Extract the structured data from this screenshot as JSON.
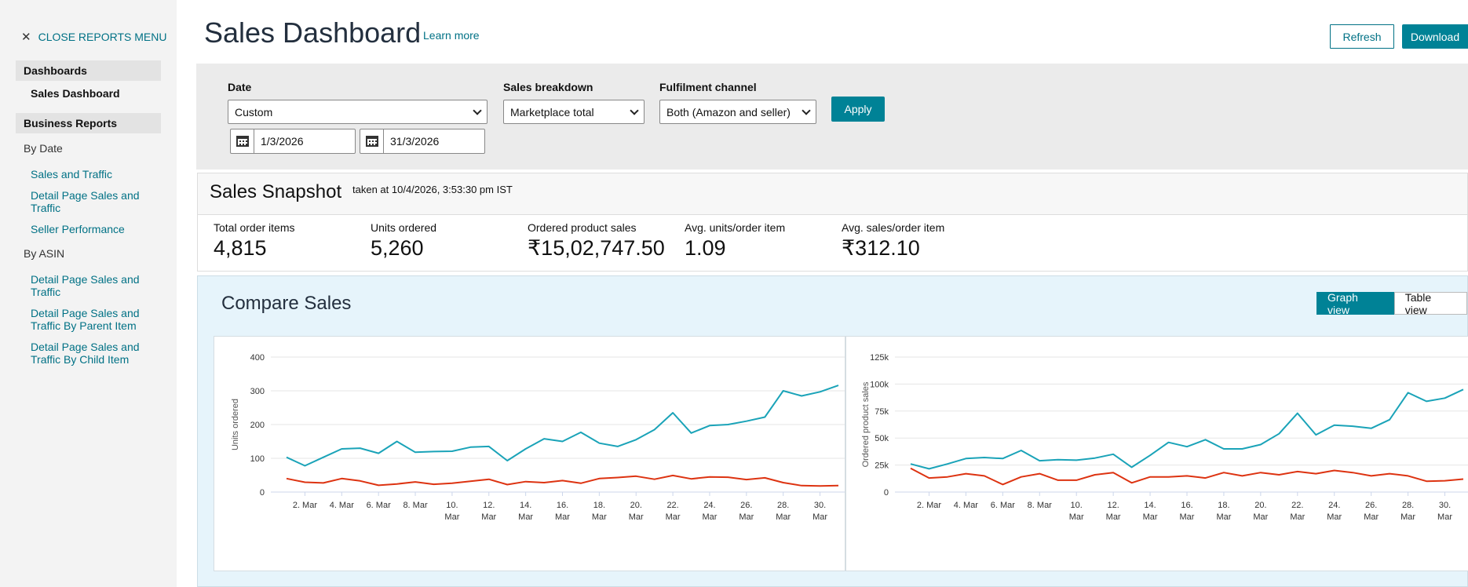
{
  "sidebar": {
    "close_label": "CLOSE REPORTS MENU",
    "section_dashboards": "Dashboards",
    "active_item": "Sales Dashboard",
    "section_business": "Business Reports",
    "by_date_label": "By Date",
    "by_date_links": [
      "Sales and Traffic",
      "Detail Page Sales and Traffic",
      "Seller Performance"
    ],
    "by_asin_label": "By ASIN",
    "by_asin_links": [
      "Detail Page Sales and Traffic",
      "Detail Page Sales and Traffic By Parent Item",
      "Detail Page Sales and Traffic By Child Item"
    ]
  },
  "header": {
    "title": "Sales Dashboard",
    "learn_more": "Learn more",
    "refresh_label": "Refresh",
    "download_label": "Download"
  },
  "filters": {
    "date_label": "Date",
    "date_value": "Custom",
    "start_date": "1/3/2026",
    "end_date": "31/3/2026",
    "breakdown_label": "Sales breakdown",
    "breakdown_value": "Marketplace total",
    "channel_label": "Fulfilment channel",
    "channel_value": "Both (Amazon and seller)",
    "apply_label": "Apply"
  },
  "snapshot": {
    "title": "Sales Snapshot",
    "taken_at": "taken at 10/4/2026, 3:53:30 pm IST",
    "metrics": [
      {
        "label": "Total order items",
        "value": "4,815"
      },
      {
        "label": "Units ordered",
        "value": "5,260"
      },
      {
        "label": "Ordered product sales",
        "value": "₹15,02,747.50"
      },
      {
        "label": "Avg. units/order item",
        "value": "1.09"
      },
      {
        "label": "Avg. sales/order item",
        "value": "₹312.10"
      }
    ]
  },
  "compare": {
    "title": "Compare Sales",
    "graph_view": "Graph view",
    "table_view": "Table view"
  },
  "colors": {
    "accent": "#008296",
    "link": "#007185",
    "series_current": "#1aa3b8",
    "series_previous": "#dd3311"
  },
  "chart_data": [
    {
      "type": "line",
      "ylabel": "Units ordered",
      "ylim": [
        0,
        400
      ],
      "yticks": [
        "0",
        "100",
        "200",
        "300",
        "400"
      ],
      "x_tick_labels": [
        [
          "2. Mar"
        ],
        [
          "4. Mar"
        ],
        [
          "6. Mar"
        ],
        [
          "8. Mar"
        ],
        [
          "10.",
          "Mar"
        ],
        [
          "12.",
          "Mar"
        ],
        [
          "14.",
          "Mar"
        ],
        [
          "16.",
          "Mar"
        ],
        [
          "18.",
          "Mar"
        ],
        [
          "20.",
          "Mar"
        ],
        [
          "22.",
          "Mar"
        ],
        [
          "24.",
          "Mar"
        ],
        [
          "26.",
          "Mar"
        ],
        [
          "28.",
          "Mar"
        ],
        [
          "30.",
          "Mar"
        ]
      ],
      "x": [
        1,
        2,
        3,
        4,
        5,
        6,
        7,
        8,
        9,
        10,
        11,
        12,
        13,
        14,
        15,
        16,
        17,
        18,
        19,
        20,
        21,
        22,
        23,
        24,
        25,
        26,
        27,
        28,
        29,
        30,
        31
      ],
      "series": [
        {
          "values": [
            103,
            78,
            103,
            128,
            130,
            115,
            150,
            118,
            120,
            121,
            133,
            135,
            93,
            128,
            158,
            150,
            177,
            145,
            135,
            155,
            185,
            235,
            175,
            197,
            200,
            210,
            222,
            300,
            285,
            297,
            316
          ]
        },
        {
          "values": [
            40,
            29,
            27,
            40,
            33,
            20,
            24,
            30,
            23,
            26,
            32,
            38,
            22,
            31,
            28,
            34,
            26,
            40,
            43,
            47,
            38,
            49,
            39,
            45,
            44,
            37,
            42,
            28,
            19,
            18,
            19
          ]
        }
      ]
    },
    {
      "type": "line",
      "ylabel": "Ordered product sales",
      "ylim": [
        0,
        125000
      ],
      "yticks": [
        "0",
        "25k",
        "50k",
        "75k",
        "100k",
        "125k"
      ],
      "x_tick_labels": [
        [
          "2. Mar"
        ],
        [
          "4. Mar"
        ],
        [
          "6. Mar"
        ],
        [
          "8. Mar"
        ],
        [
          "10.",
          "Mar"
        ],
        [
          "12.",
          "Mar"
        ],
        [
          "14.",
          "Mar"
        ],
        [
          "16.",
          "Mar"
        ],
        [
          "18.",
          "Mar"
        ],
        [
          "20.",
          "Mar"
        ],
        [
          "22.",
          "Mar"
        ],
        [
          "24.",
          "Mar"
        ],
        [
          "26.",
          "Mar"
        ],
        [
          "28.",
          "Mar"
        ],
        [
          "30.",
          "Mar"
        ]
      ],
      "x": [
        1,
        2,
        3,
        4,
        5,
        6,
        7,
        8,
        9,
        10,
        11,
        12,
        13,
        14,
        15,
        16,
        17,
        18,
        19,
        20,
        21,
        22,
        23,
        24,
        25,
        26,
        27,
        28,
        29,
        30,
        31
      ],
      "series": [
        {
          "values": [
            26000,
            21500,
            26000,
            31000,
            32000,
            31000,
            38500,
            29000,
            30000,
            29500,
            31500,
            35000,
            23000,
            34000,
            46000,
            42000,
            48500,
            40000,
            40000,
            44000,
            54000,
            73000,
            53000,
            62000,
            61000,
            59000,
            67000,
            92000,
            84000,
            87000,
            95000
          ]
        },
        {
          "values": [
            22000,
            13000,
            14000,
            17000,
            15000,
            7000,
            14000,
            17000,
            11000,
            11000,
            16000,
            18000,
            8500,
            14000,
            14000,
            15000,
            13000,
            18000,
            15000,
            18000,
            16000,
            19000,
            17000,
            20000,
            18000,
            15000,
            17000,
            15000,
            10000,
            10500,
            12000
          ]
        }
      ]
    }
  ]
}
